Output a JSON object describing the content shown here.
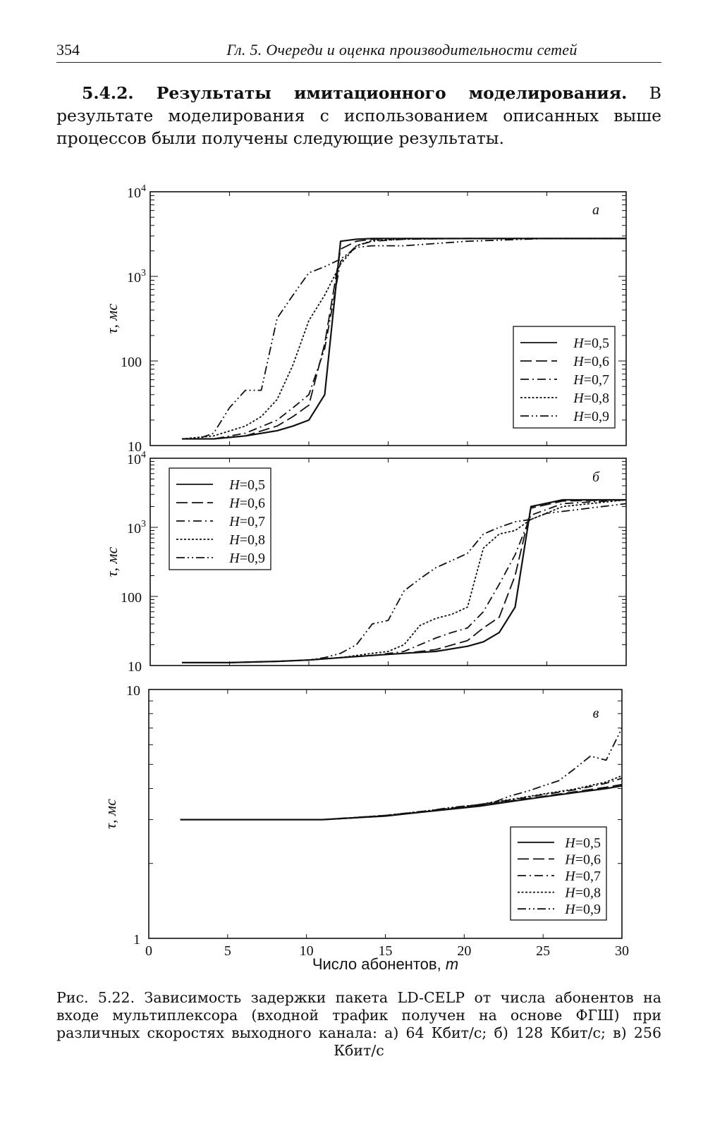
{
  "header": {
    "page_number": "354",
    "running_title": "Гл. 5. Очереди и оценка производительности сетей"
  },
  "section": {
    "heading": "5.4.2. Результаты имитационного моделирования.",
    "text": "В результате моделирования с использованием описанных выше процессов были получены следующие результаты."
  },
  "caption": "Рис. 5.22. Зависимость задержки пакета LD-CELP от числа абонентов на входе мультиплексора (входной трафик получен на основе ФГШ) при различных скоростях выходного канала: а) 64 Кбит/с; б) 128 Кбит/с; в) 256 Кбит/с",
  "chart_data": [
    {
      "type": "line",
      "panel_label": "а",
      "ylabel": "τ, мс",
      "yscale": "log",
      "ylim": [
        10,
        10000
      ],
      "xlim": [
        0,
        30
      ],
      "ytick_labels": [
        "10",
        "100",
        "10^3",
        "10^4"
      ],
      "legend_position": "bottom-right",
      "series": [
        {
          "name": "H=0,5",
          "style": "solid",
          "x": [
            2,
            4,
            6,
            8,
            9,
            10,
            11,
            12,
            13,
            14,
            16,
            20,
            25,
            30
          ],
          "y": [
            12,
            12,
            13,
            15,
            17,
            20,
            40,
            2600,
            2750,
            2800,
            2800,
            2800,
            2800,
            2800
          ]
        },
        {
          "name": "H=0,6",
          "style": "long-dash",
          "x": [
            2,
            4,
            6,
            8,
            9,
            10,
            11,
            12,
            13,
            14,
            16,
            20,
            25,
            30
          ],
          "y": [
            12,
            12,
            13,
            17,
            22,
            30,
            160,
            2100,
            2600,
            2750,
            2800,
            2800,
            2800,
            2800
          ]
        },
        {
          "name": "H=0,7",
          "style": "dash-dot",
          "x": [
            2,
            4,
            6,
            8,
            9,
            10,
            11,
            12,
            13,
            14,
            16,
            20,
            25,
            30
          ],
          "y": [
            12,
            12,
            14,
            20,
            28,
            40,
            140,
            1500,
            2300,
            2600,
            2750,
            2800,
            2800,
            2800
          ]
        },
        {
          "name": "H=0,8",
          "style": "dotted",
          "x": [
            2,
            4,
            6,
            7,
            8,
            9,
            10,
            11,
            12,
            13,
            14,
            16,
            20,
            25,
            30
          ],
          "y": [
            12,
            13,
            17,
            22,
            35,
            90,
            300,
            600,
            1400,
            2300,
            2650,
            2750,
            2800,
            2800,
            2800
          ]
        },
        {
          "name": "H=0,9",
          "style": "dash-dot-dot",
          "x": [
            2,
            3,
            4,
            5,
            6,
            7,
            8,
            9,
            10,
            11,
            12,
            13,
            14,
            16,
            20,
            25,
            30
          ],
          "y": [
            12,
            12,
            14,
            28,
            45,
            45,
            320,
            600,
            1100,
            1300,
            1600,
            2200,
            2300,
            2300,
            2600,
            2800,
            2800
          ]
        }
      ]
    },
    {
      "type": "line",
      "panel_label": "б",
      "ylabel": "τ, мс",
      "yscale": "log",
      "ylim": [
        10,
        10000
      ],
      "xlim": [
        0,
        30
      ],
      "ytick_labels": [
        "10",
        "100",
        "10^3",
        "10^4"
      ],
      "legend_position": "top-left",
      "series": [
        {
          "name": "H=0,5",
          "style": "solid",
          "x": [
            2,
            5,
            8,
            10,
            12,
            14,
            16,
            18,
            20,
            21,
            22,
            23,
            24,
            26,
            30
          ],
          "y": [
            11,
            11,
            11.5,
            12,
            13,
            14,
            15,
            16,
            19,
            22,
            30,
            70,
            2000,
            2500,
            2500
          ]
        },
        {
          "name": "H=0,6",
          "style": "long-dash",
          "x": [
            2,
            5,
            8,
            10,
            12,
            14,
            16,
            18,
            20,
            21,
            22,
            23,
            24,
            26,
            30
          ],
          "y": [
            11,
            11,
            11.5,
            12,
            13,
            14,
            15,
            17,
            23,
            35,
            50,
            200,
            1900,
            2400,
            2500
          ]
        },
        {
          "name": "H=0,7",
          "style": "dash-dot",
          "x": [
            2,
            5,
            8,
            10,
            12,
            14,
            16,
            18,
            19,
            20,
            21,
            22,
            23,
            24,
            26,
            30
          ],
          "y": [
            11,
            11,
            11.5,
            12,
            13,
            14,
            16,
            25,
            30,
            35,
            60,
            150,
            400,
            1500,
            2200,
            2500
          ]
        },
        {
          "name": "H=0,8",
          "style": "dotted",
          "x": [
            2,
            5,
            8,
            10,
            12,
            14,
            15,
            16,
            17,
            18,
            19,
            20,
            21,
            22,
            23,
            24,
            26,
            30
          ],
          "y": [
            11,
            11,
            11.5,
            12,
            13,
            15,
            16,
            20,
            38,
            48,
            55,
            70,
            500,
            800,
            900,
            1300,
            2000,
            2500
          ]
        },
        {
          "name": "H=0,9",
          "style": "dash-dot-dot",
          "x": [
            2,
            5,
            8,
            10,
            11,
            12,
            13,
            14,
            15,
            16,
            17,
            18,
            19,
            20,
            21,
            22,
            23,
            24,
            25,
            26,
            30
          ],
          "y": [
            11,
            11,
            11.5,
            12,
            13,
            15,
            20,
            40,
            45,
            120,
            180,
            260,
            330,
            420,
            800,
            1000,
            1200,
            1300,
            1600,
            1700,
            2200
          ]
        }
      ]
    },
    {
      "type": "line",
      "panel_label": "в",
      "ylabel": "τ, мс",
      "yscale": "log",
      "ylim": [
        1,
        10
      ],
      "xlim": [
        0,
        30
      ],
      "ytick_labels": [
        "1",
        "10"
      ],
      "legend_position": "bottom-right",
      "xlabel": "Число абонентов, m",
      "xticks": [
        0,
        5,
        10,
        15,
        20,
        25,
        30
      ],
      "series": [
        {
          "name": "H=0,5",
          "style": "solid",
          "x": [
            2,
            5,
            8,
            11,
            13,
            15,
            17,
            19,
            21,
            23,
            25,
            27,
            29,
            30
          ],
          "y": [
            3.0,
            3.0,
            3.0,
            3.0,
            3.05,
            3.1,
            3.2,
            3.3,
            3.4,
            3.55,
            3.7,
            3.85,
            4.0,
            4.1
          ]
        },
        {
          "name": "H=0,6",
          "style": "long-dash",
          "x": [
            2,
            5,
            8,
            11,
            13,
            15,
            17,
            19,
            21,
            23,
            25,
            27,
            29,
            30
          ],
          "y": [
            3.0,
            3.0,
            3.0,
            3.0,
            3.05,
            3.1,
            3.2,
            3.3,
            3.42,
            3.57,
            3.72,
            3.88,
            4.05,
            4.15
          ]
        },
        {
          "name": "H=0,7",
          "style": "dash-dot",
          "x": [
            2,
            5,
            8,
            11,
            13,
            15,
            17,
            19,
            21,
            23,
            25,
            27,
            29,
            30
          ],
          "y": [
            3.0,
            3.0,
            3.0,
            3.0,
            3.05,
            3.12,
            3.22,
            3.32,
            3.45,
            3.6,
            3.78,
            3.95,
            4.2,
            4.4
          ]
        },
        {
          "name": "H=0,8",
          "style": "dotted",
          "x": [
            2,
            5,
            8,
            11,
            13,
            15,
            17,
            19,
            21,
            23,
            25,
            27,
            29,
            30
          ],
          "y": [
            3.0,
            3.0,
            3.0,
            3.0,
            3.05,
            3.12,
            3.22,
            3.33,
            3.45,
            3.62,
            3.8,
            3.98,
            4.25,
            4.5
          ]
        },
        {
          "name": "H=0,9",
          "style": "dash-dot-dot",
          "x": [
            2,
            5,
            8,
            11,
            13,
            15,
            17,
            19,
            21,
            22,
            23,
            24,
            25,
            26,
            27,
            28,
            29,
            30
          ],
          "y": [
            3.0,
            3.0,
            3.0,
            3.0,
            3.06,
            3.12,
            3.2,
            3.35,
            3.45,
            3.55,
            3.75,
            3.9,
            4.1,
            4.3,
            4.8,
            5.4,
            5.2,
            7.0
          ]
        }
      ]
    }
  ]
}
